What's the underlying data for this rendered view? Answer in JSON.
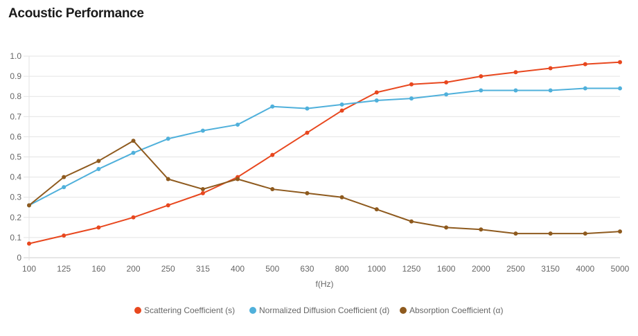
{
  "title": "Acoustic Performance",
  "chart_data": {
    "type": "line",
    "title": "Acoustic Performance",
    "xlabel": "f(Hz)",
    "ylabel": "",
    "ylim": [
      0,
      1.0
    ],
    "yticks": [
      "0",
      "0.1",
      "0.2",
      "0.3",
      "0.4",
      "0.5",
      "0.6",
      "0.7",
      "0.8",
      "0.9",
      "1.0"
    ],
    "grid": true,
    "legend_position": "bottom",
    "categories": [
      "100",
      "125",
      "160",
      "200",
      "250",
      "315",
      "400",
      "500",
      "630",
      "800",
      "1000",
      "1250",
      "1600",
      "2000",
      "2500",
      "3150",
      "4000",
      "5000"
    ],
    "series": [
      {
        "name": "Scattering Coefficient (s)",
        "color": "#e8471e",
        "values": [
          0.07,
          0.11,
          0.15,
          0.2,
          0.26,
          0.32,
          0.4,
          0.51,
          0.62,
          0.73,
          0.82,
          0.86,
          0.87,
          0.9,
          0.92,
          0.94,
          0.96,
          0.97
        ]
      },
      {
        "name": "Normalized Diffusion Coefficient (d)",
        "color": "#4fb0db",
        "values": [
          0.26,
          0.35,
          0.44,
          0.52,
          0.59,
          0.63,
          0.66,
          0.75,
          0.74,
          0.76,
          0.78,
          0.79,
          0.81,
          0.83,
          0.83,
          0.83,
          0.84,
          0.84
        ]
      },
      {
        "name": "Absorption Coefficient (α)",
        "color": "#8e5a1e",
        "values": [
          0.26,
          0.4,
          0.48,
          0.58,
          0.39,
          0.34,
          0.39,
          0.34,
          0.32,
          0.3,
          0.24,
          0.18,
          0.15,
          0.14,
          0.12,
          0.12,
          0.12,
          0.13
        ]
      }
    ]
  }
}
